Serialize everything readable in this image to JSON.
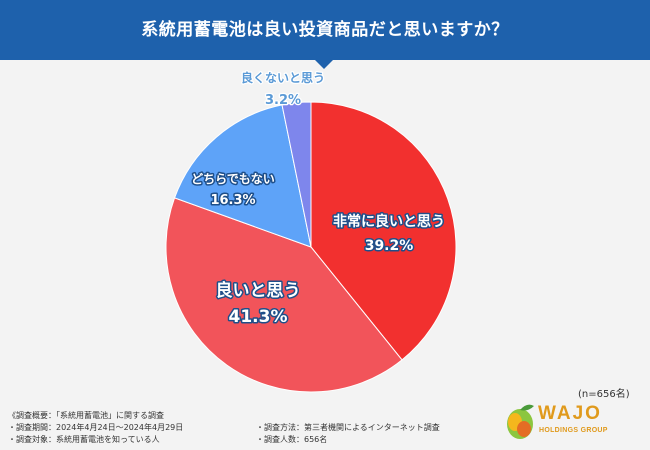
{
  "header": {
    "title": "系統用蓄電池は良い投資商品だと思いますか？"
  },
  "chart_data": {
    "type": "pie",
    "title": "系統用蓄電池は良い投資商品だと思いますか？",
    "slices": [
      {
        "label": "非常に良いと思う",
        "value": 39.2,
        "display": "39.2%",
        "color": "#f2302f"
      },
      {
        "label": "良いと思う",
        "value": 41.3,
        "display": "41.3%",
        "color": "#f2545a"
      },
      {
        "label": "どちらでもない",
        "value": 16.3,
        "display": "16.3%",
        "color": "#5ea3f8"
      },
      {
        "label": "良くないと思う",
        "value": 3.2,
        "display": "3.2%",
        "color": "#7e86ec"
      }
    ],
    "start": "top",
    "direction": "clockwise"
  },
  "sample_size": "(n=656名)",
  "notes": {
    "outline": "《調査概要：「系統用蓄電池」に関する調査",
    "period": "・調査期間：2024年4月24日～2024年4月29日",
    "target": "・調査対象：系統用蓄電池を知っている人",
    "method": "・調査方法：第三者機関によるインターネット調査",
    "respondents": "・調査人数：656名"
  },
  "logo": {
    "name": "WAJO",
    "subtitle": "HOLDINGS GROUP"
  }
}
